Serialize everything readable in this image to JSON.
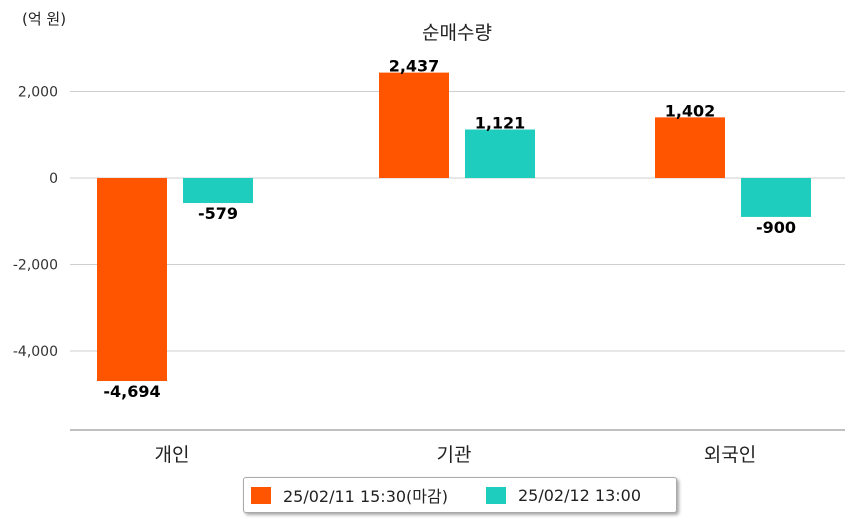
{
  "unit_label": "(억 원)",
  "chart_data": {
    "type": "bar",
    "title": "순매수량",
    "categories": [
      "개인",
      "기관",
      "외국인"
    ],
    "series": [
      {
        "name": "25/02/11 15:30(마감)",
        "values": [
          -4694,
          2437,
          1402
        ],
        "color": "#ff5400"
      },
      {
        "name": "25/02/12 13:00",
        "values": [
          -579,
          1121,
          -900
        ],
        "color": "#1fcdbe"
      }
    ],
    "data_labels": [
      [
        "-4,694",
        "2,437",
        "1,402"
      ],
      [
        "-579",
        "1,121",
        "-900"
      ]
    ],
    "yticks": [
      2000,
      0,
      -2000,
      -4000
    ],
    "ytick_labels": [
      "2,000",
      "0",
      "-2,000",
      "-4,000"
    ],
    "ylim": [
      -5800,
      2900
    ],
    "grid": true,
    "legend_position": "bottom"
  }
}
